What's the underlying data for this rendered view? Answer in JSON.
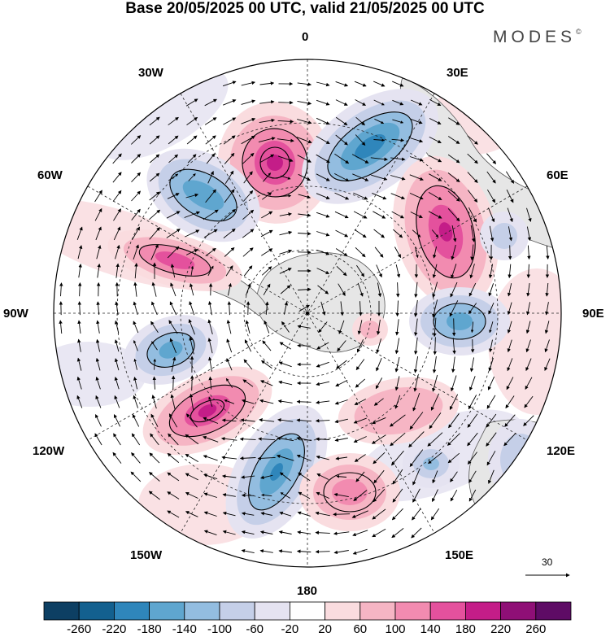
{
  "title": "Base 20/05/2025 00 UTC, valid 21/05/2025 00 UTC",
  "brand": "MODES",
  "brand_mark": "©",
  "meridian_labels": {
    "lon_0": "0",
    "lon_30e": "30E",
    "lon_60e": "60E",
    "lon_90e": "90E",
    "lon_120e": "120E",
    "lon_150e": "150E",
    "lon_180": "180",
    "lon_150w": "150W",
    "lon_120w": "120W",
    "lon_90w": "90W",
    "lon_60w": "60W",
    "lon_30w": "30W"
  },
  "reference_vector_label": "30",
  "colorbar": {
    "ticks": [
      "-260",
      "-220",
      "-180",
      "-140",
      "-100",
      "-60",
      "-20",
      "20",
      "60",
      "100",
      "140",
      "180",
      "220",
      "260"
    ],
    "colors": [
      "#0d3f63",
      "#13608f",
      "#2f86bb",
      "#5fa6cf",
      "#93bde0",
      "#c5cfe8",
      "#e5e3f1",
      "#ffffff",
      "#fadcdf",
      "#f6b5c4",
      "#f28bb0",
      "#e4519d",
      "#c41d88",
      "#8f0f76",
      "#5e0b65"
    ]
  },
  "anomalies": [
    {
      "sign": "pos",
      "level": 5
    },
    {
      "sign": "neg",
      "level": 5
    },
    {
      "sign": "pos",
      "level": 5
    },
    {
      "sign": "neg",
      "level": 3
    },
    {
      "sign": "pos",
      "level": 3
    },
    {
      "sign": "neg",
      "level": 4
    },
    {
      "sign": "pos",
      "level": 5
    },
    {
      "sign": "neg",
      "level": 4
    },
    {
      "sign": "pos",
      "level": 3
    },
    {
      "sign": "neg",
      "level": 4
    },
    {
      "sign": "neg",
      "level": 3
    },
    {
      "sign": "pos",
      "level": 4
    }
  ]
}
